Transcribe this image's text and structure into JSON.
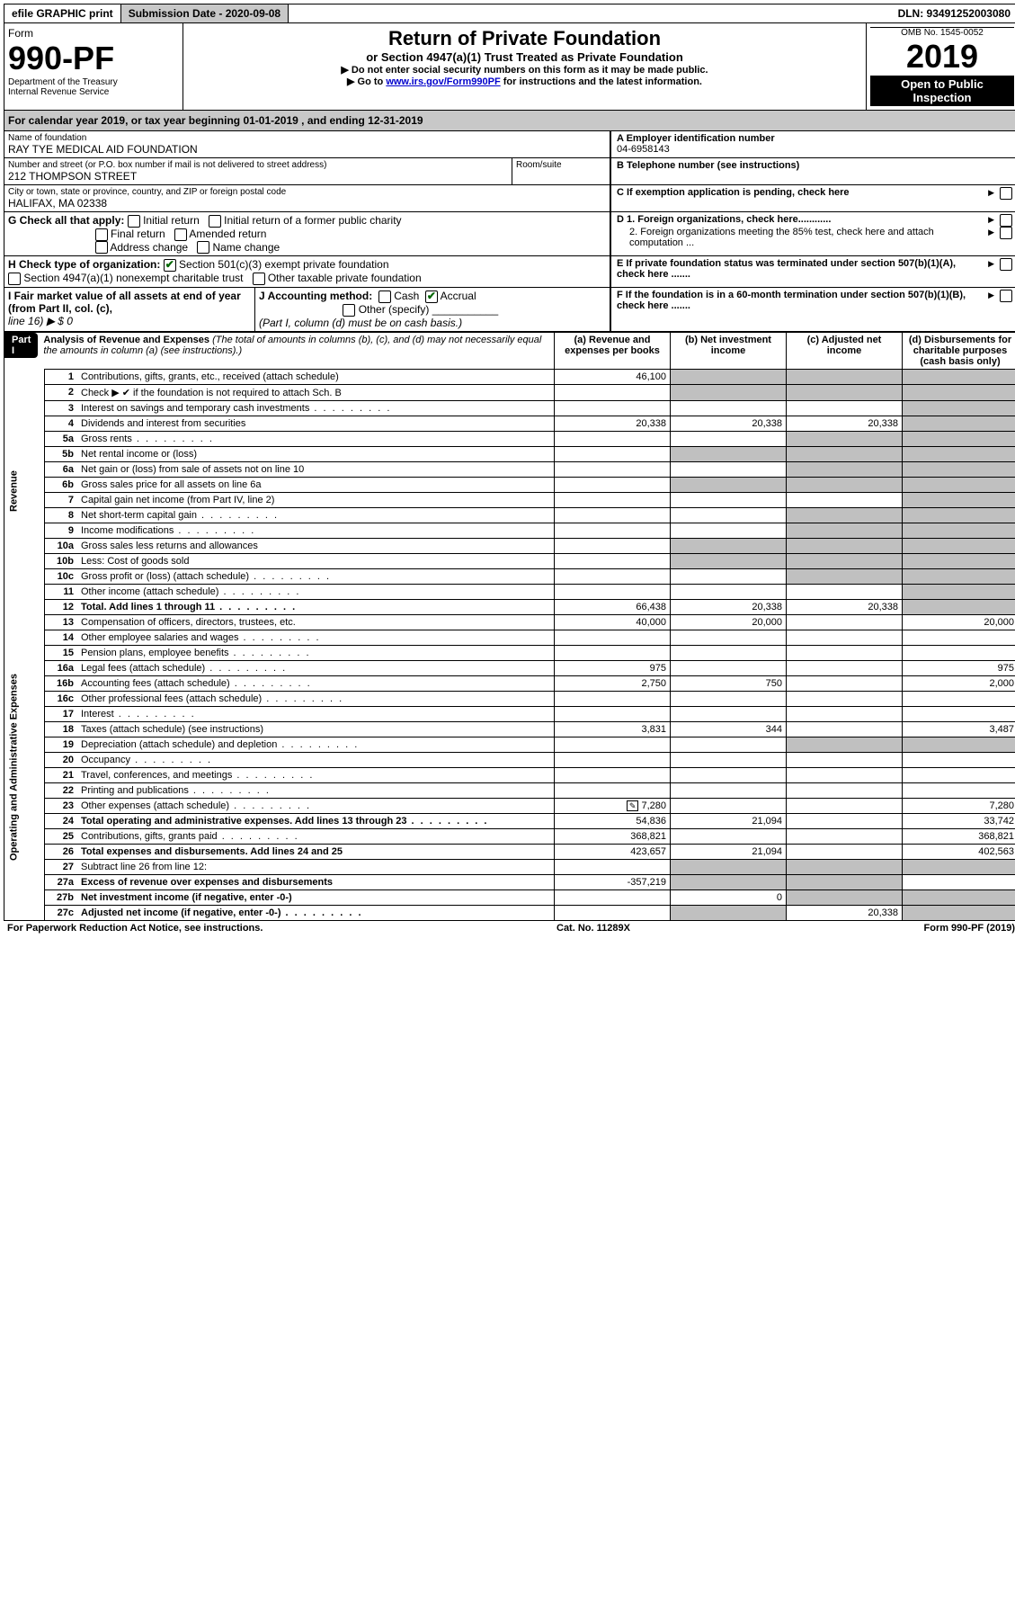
{
  "top_bar": {
    "efile": "efile GRAPHIC print",
    "sub_date_label": "Submission Date - 2020-09-08",
    "dln": "DLN: 93491252003080"
  },
  "header": {
    "form": "Form",
    "form_no": "990-PF",
    "dept": "Department of the Treasury",
    "irs": "Internal Revenue Service",
    "title": "Return of Private Foundation",
    "subtitle": "or Section 4947(a)(1) Trust Treated as Private Foundation",
    "instr1": "▶ Do not enter social security numbers on this form as it may be made public.",
    "instr2_pre": "▶ Go to ",
    "instr2_link": "www.irs.gov/Form990PF",
    "instr2_post": " for instructions and the latest information.",
    "omb": "OMB No. 1545-0052",
    "year": "2019",
    "open": "Open to Public Inspection"
  },
  "cal": "For calendar year 2019, or tax year beginning 01-01-2019               , and ending 12-31-2019",
  "id_block": {
    "name_lbl": "Name of foundation",
    "name": "RAY TYE MEDICAL AID FOUNDATION",
    "addr_lbl": "Number and street (or P.O. box number if mail is not delivered to street address)",
    "addr": "212 THOMPSON STREET",
    "room_lbl": "Room/suite",
    "city_lbl": "City or town, state or province, country, and ZIP or foreign postal code",
    "city": "HALIFAX, MA  02338",
    "a_lbl": "A Employer identification number",
    "a_val": "04-6958143",
    "b_lbl": "B Telephone number (see instructions)",
    "c_lbl": "C If exemption application is pending, check here",
    "d1": "D 1. Foreign organizations, check here............",
    "d2": "2. Foreign organizations meeting the 85% test, check here and attach computation ...",
    "e_lbl": "E  If private foundation status was terminated under section 507(b)(1)(A), check here .......",
    "f_lbl": "F  If the foundation is in a 60-month termination under section 507(b)(1)(B), check here .......",
    "g_lbl": "G Check all that apply:",
    "g_opts": {
      "initial": "Initial return",
      "initial_pc": "Initial return of a former public charity",
      "final": "Final return",
      "amended": "Amended return",
      "addr": "Address change",
      "name": "Name change"
    },
    "h_lbl": "H Check type of organization:",
    "h_501": "Section 501(c)(3) exempt private foundation",
    "h_4947": "Section 4947(a)(1) nonexempt charitable trust",
    "h_other": "Other taxable private foundation",
    "i_lbl": "I Fair market value of all assets at end of year (from Part II, col. (c),",
    "i_line": "line 16) ▶ $  0",
    "j_lbl": "J Accounting method:",
    "j_cash": "Cash",
    "j_accrual": "Accrual",
    "j_other": "Other (specify)",
    "j_note": "(Part I, column (d) must be on cash basis.)"
  },
  "part1": {
    "label": "Part I",
    "title": "Analysis of Revenue and Expenses",
    "title_note": " (The total of amounts in columns (b), (c), and (d) may not necessarily equal the amounts in column (a) (see instructions).)",
    "col_a": "(a)    Revenue and expenses per books",
    "col_b": "(b)   Net investment income",
    "col_c": "(c)   Adjusted net income",
    "col_d": "(d)   Disbursements for charitable purposes (cash basis only)"
  },
  "sections": {
    "revenue": "Revenue",
    "expenses": "Operating and Administrative Expenses"
  },
  "lines": {
    "1": {
      "d": "Contributions, gifts, grants, etc., received (attach schedule)",
      "a": "46,100"
    },
    "2": {
      "d": "Check ▶ ✔ if the foundation is not required to attach Sch. B"
    },
    "3": {
      "d": "Interest on savings and temporary cash investments"
    },
    "4": {
      "d": "Dividends and interest from securities",
      "a": "20,338",
      "b": "20,338",
      "c": "20,338"
    },
    "5a": {
      "d": "Gross rents"
    },
    "5b": {
      "d": "Net rental income or (loss)"
    },
    "6a": {
      "d": "Net gain or (loss) from sale of assets not on line 10"
    },
    "6b": {
      "d": "Gross sales price for all assets on line 6a"
    },
    "7": {
      "d": "Capital gain net income (from Part IV, line 2)"
    },
    "8": {
      "d": "Net short-term capital gain"
    },
    "9": {
      "d": "Income modifications"
    },
    "10a": {
      "d": "Gross sales less returns and allowances"
    },
    "10b": {
      "d": "Less: Cost of goods sold"
    },
    "10c": {
      "d": "Gross profit or (loss) (attach schedule)"
    },
    "11": {
      "d": "Other income (attach schedule)"
    },
    "12": {
      "d": "Total. Add lines 1 through 11",
      "bold": true,
      "a": "66,438",
      "b": "20,338",
      "c": "20,338"
    },
    "13": {
      "d": "Compensation of officers, directors, trustees, etc.",
      "a": "40,000",
      "b": "20,000",
      "dd": "20,000"
    },
    "14": {
      "d": "Other employee salaries and wages"
    },
    "15": {
      "d": "Pension plans, employee benefits"
    },
    "16a": {
      "d": "Legal fees (attach schedule)",
      "a": "975",
      "dd": "975"
    },
    "16b": {
      "d": "Accounting fees (attach schedule)",
      "a": "2,750",
      "b": "750",
      "dd": "2,000"
    },
    "16c": {
      "d": "Other professional fees (attach schedule)"
    },
    "17": {
      "d": "Interest"
    },
    "18": {
      "d": "Taxes (attach schedule) (see instructions)",
      "a": "3,831",
      "b": "344",
      "dd": "3,487"
    },
    "19": {
      "d": "Depreciation (attach schedule) and depletion"
    },
    "20": {
      "d": "Occupancy"
    },
    "21": {
      "d": "Travel, conferences, and meetings"
    },
    "22": {
      "d": "Printing and publications"
    },
    "23": {
      "d": "Other expenses (attach schedule)",
      "a": "7,280",
      "dd": "7,280",
      "icon": true
    },
    "24": {
      "d": "Total operating and administrative expenses. Add lines 13 through 23",
      "bold": true,
      "a": "54,836",
      "b": "21,094",
      "dd": "33,742"
    },
    "25": {
      "d": "Contributions, gifts, grants paid",
      "a": "368,821",
      "dd": "368,821"
    },
    "26": {
      "d": "Total expenses and disbursements. Add lines 24 and 25",
      "bold": true,
      "a": "423,657",
      "b": "21,094",
      "dd": "402,563"
    },
    "27": {
      "d": "Subtract line 26 from line 12:"
    },
    "27a": {
      "d": "Excess of revenue over expenses and disbursements",
      "bold": true,
      "a": "-357,219"
    },
    "27b": {
      "d": "Net investment income (if negative, enter -0-)",
      "bold": true,
      "b": "0"
    },
    "27c": {
      "d": "Adjusted net income (if negative, enter -0-)",
      "bold": true,
      "c": "20,338"
    }
  },
  "footer": {
    "left": "For Paperwork Reduction Act Notice, see instructions.",
    "mid": "Cat. No. 11289X",
    "right": "Form 990-PF (2019)"
  },
  "colors": {
    "shade": "#c0c0c0",
    "black": "#000000",
    "link": "#0000cc",
    "green": "#006600"
  }
}
